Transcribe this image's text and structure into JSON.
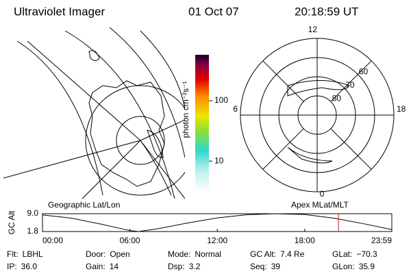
{
  "header": {
    "title": "Ultraviolet Imager",
    "date": "01 Oct 07",
    "time": "20:18:59 UT"
  },
  "colorbar": {
    "label": "photon cm⁻²s⁻¹",
    "lim": [
      3.1,
      577
    ],
    "log": true,
    "ticks": [
      10,
      100
    ]
  },
  "left_panel": {
    "label": "Geographic Lat/Lon"
  },
  "right_panel": {
    "label": "Apex MLat/MLT",
    "rlim": [
      90,
      50
    ],
    "mlt_ticks": [
      12,
      18,
      6,
      0
    ],
    "lat_rings": [
      80,
      70,
      60
    ]
  },
  "chart_data": {
    "type": "line",
    "ylabel": "GC Alt",
    "x": [
      0,
      2,
      4,
      6,
      6.6,
      8,
      10,
      12,
      14,
      16,
      18,
      20,
      22,
      23.98
    ],
    "values": [
      8.5,
      7.2,
      4.8,
      2.2,
      1.8,
      3.0,
      5.3,
      7.3,
      8.6,
      9.0,
      8.7,
      7.2,
      5.0,
      2.6
    ],
    "color": "#000000",
    "current_time": 20.32,
    "current_color": "#d01010",
    "xlim": [
      0,
      23.98
    ],
    "xticks": [
      {
        "value": 0,
        "label": "00:00"
      },
      {
        "value": 6,
        "label": "06:00"
      },
      {
        "value": 12,
        "label": "12:00"
      },
      {
        "value": 18,
        "label": "18:00"
      },
      {
        "value": 23.98,
        "label": "23:59"
      }
    ],
    "ylim": [
      1.8,
      9.0
    ],
    "yticks": [
      {
        "value": 9,
        "label": "9.0"
      },
      1.8
    ]
  },
  "footer": {
    "rows": [
      [
        {
          "label": "Flt:",
          "value": "LBHL"
        },
        {
          "label": "Door:",
          "value": "Open"
        },
        {
          "label": "Mode:",
          "value": "Normal"
        },
        {
          "label": "GC Alt:",
          "value": "7.4 Re"
        },
        {
          "label": "GLat:",
          "value": "−70.3"
        }
      ],
      [
        {
          "label": "IP:",
          "value": "36.0"
        },
        {
          "label": "Gain:",
          "value": "14"
        },
        {
          "label": "Dsp:",
          "value": "3.2"
        },
        {
          "label": "Seq:",
          "value": "39"
        },
        {
          "label": "GLon:",
          "value": "35.9"
        }
      ]
    ]
  }
}
